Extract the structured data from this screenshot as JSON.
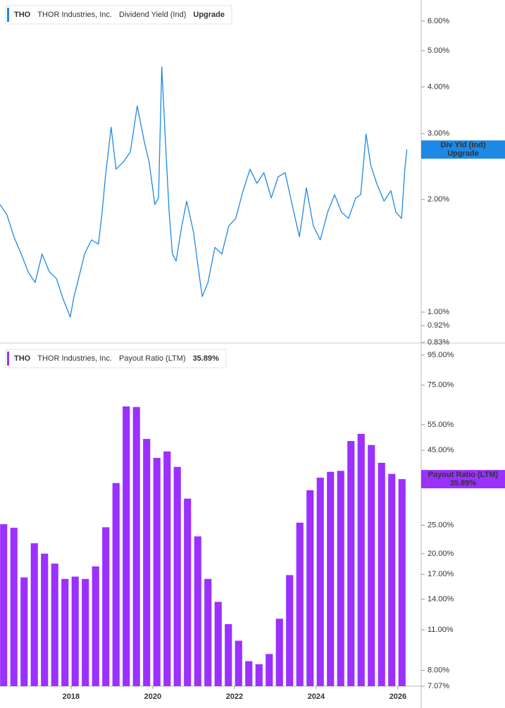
{
  "chart_data": [
    {
      "type": "line",
      "ticker": "THO",
      "company": "THOR Industries, Inc.",
      "tag_title": "Div Yld (Ind)",
      "current_label": "Upgrade",
      "log_scale": true,
      "xlim": [
        2016.26,
        2026.57
      ],
      "ylim": [
        0.83,
        6.83
      ],
      "yticks": [
        {
          "value": 0.83,
          "label": "0.83%"
        },
        {
          "value": 0.92,
          "label": "0.92%"
        },
        {
          "value": 1,
          "label": "1.00%"
        },
        {
          "value": 2,
          "label": "2.00%"
        },
        {
          "value": 3,
          "label": "3.00%"
        },
        {
          "value": 4,
          "label": "4.00%"
        },
        {
          "value": 5,
          "label": "5.00%"
        },
        {
          "value": 6,
          "label": "6.00%"
        }
      ],
      "series": [
        {
          "name": "Dividend Yield (Ind)",
          "color": "#1e88e5",
          "x": [
            2016.26,
            2016.43,
            2016.6,
            2016.78,
            2016.95,
            2017.12,
            2017.29,
            2017.47,
            2017.64,
            2017.81,
            2017.98,
            2018.07,
            2018.16,
            2018.33,
            2018.5,
            2018.67,
            2018.76,
            2018.84,
            2018.98,
            2019.1,
            2019.28,
            2019.45,
            2019.62,
            2019.79,
            2019.91,
            2020.05,
            2020.14,
            2020.22,
            2020.31,
            2020.4,
            2020.48,
            2020.57,
            2020.71,
            2020.83,
            2021.0,
            2021.09,
            2021.21,
            2021.35,
            2021.52,
            2021.69,
            2021.86,
            2022.03,
            2022.21,
            2022.38,
            2022.55,
            2022.72,
            2022.9,
            2023.07,
            2023.24,
            2023.41,
            2023.59,
            2023.76,
            2023.93,
            2024.1,
            2024.28,
            2024.45,
            2024.62,
            2024.79,
            2024.97,
            2025.09,
            2025.22,
            2025.34,
            2025.48,
            2025.66,
            2025.83,
            2025.95,
            2026.09,
            2026.17,
            2026.22
          ],
          "values": [
            1.94,
            1.82,
            1.59,
            1.43,
            1.28,
            1.2,
            1.43,
            1.28,
            1.23,
            1.08,
            0.97,
            1.1,
            1.2,
            1.43,
            1.56,
            1.52,
            1.85,
            2.3,
            3.12,
            2.41,
            2.52,
            2.68,
            3.56,
            2.86,
            2.52,
            1.94,
            2.02,
            4.52,
            2.86,
            1.85,
            1.43,
            1.37,
            1.7,
            1.98,
            1.63,
            1.37,
            1.1,
            1.2,
            1.49,
            1.43,
            1.7,
            1.78,
            2.11,
            2.41,
            2.21,
            2.36,
            2.02,
            2.3,
            2.36,
            1.94,
            1.59,
            2.15,
            1.7,
            1.56,
            1.85,
            2.06,
            1.85,
            1.78,
            2.02,
            2.06,
            2.99,
            2.46,
            2.21,
            1.98,
            2.11,
            1.85,
            1.78,
            2.41,
            2.72
          ]
        }
      ]
    },
    {
      "type": "bar",
      "ticker": "THO",
      "company": "THOR Industries, Inc.",
      "tag_title": "Payout Ratio (LTM)",
      "current": {
        "value": 35.89,
        "label": "35.89%"
      },
      "log_scale": true,
      "xlim": [
        2016.26,
        2026.57
      ],
      "ylim": [
        7.07,
        103.8
      ],
      "xticks": [
        2018,
        2020,
        2022,
        2024,
        2026
      ],
      "yticks": [
        {
          "value": 7.07,
          "label": "7.07%"
        },
        {
          "value": 8,
          "label": "8.00%"
        },
        {
          "value": 11,
          "label": "11.00%"
        },
        {
          "value": 14,
          "label": "14.00%"
        },
        {
          "value": 17,
          "label": "17.00%"
        },
        {
          "value": 20,
          "label": "20.00%"
        },
        {
          "value": 25,
          "label": "25.00%"
        },
        {
          "value": 45,
          "label": "45.00%"
        },
        {
          "value": 55,
          "label": "55.00%"
        },
        {
          "value": 75,
          "label": "75.00%"
        },
        {
          "value": 95,
          "label": "95.00%"
        }
      ],
      "series": [
        {
          "name": "Payout Ratio (LTM)",
          "color": "#9b30ff",
          "x": [
            2016.35,
            2016.6,
            2016.85,
            2017.1,
            2017.35,
            2017.6,
            2017.85,
            2018.1,
            2018.35,
            2018.6,
            2018.85,
            2019.1,
            2019.35,
            2019.6,
            2019.85,
            2020.1,
            2020.35,
            2020.6,
            2020.85,
            2021.1,
            2021.35,
            2021.6,
            2021.85,
            2022.1,
            2022.35,
            2022.6,
            2022.85,
            2023.1,
            2023.35,
            2023.6,
            2023.85,
            2024.1,
            2024.35,
            2024.6,
            2024.85,
            2025.1,
            2025.35,
            2025.6,
            2025.85,
            2026.1
          ],
          "values": [
            25.2,
            24.5,
            16.6,
            21.7,
            20.0,
            18.5,
            16.4,
            16.7,
            16.4,
            18.1,
            24.6,
            34.8,
            63.5,
            63.2,
            49.2,
            42.4,
            44.6,
            39.5,
            30.8,
            22.9,
            16.4,
            13.7,
            11.5,
            10.1,
            8.6,
            8.4,
            9.1,
            12.0,
            16.9,
            25.5,
            32.9,
            36.3,
            38.0,
            38.3,
            48.4,
            51.2,
            46.9,
            40.8,
            37.4,
            35.89
          ]
        }
      ]
    }
  ]
}
